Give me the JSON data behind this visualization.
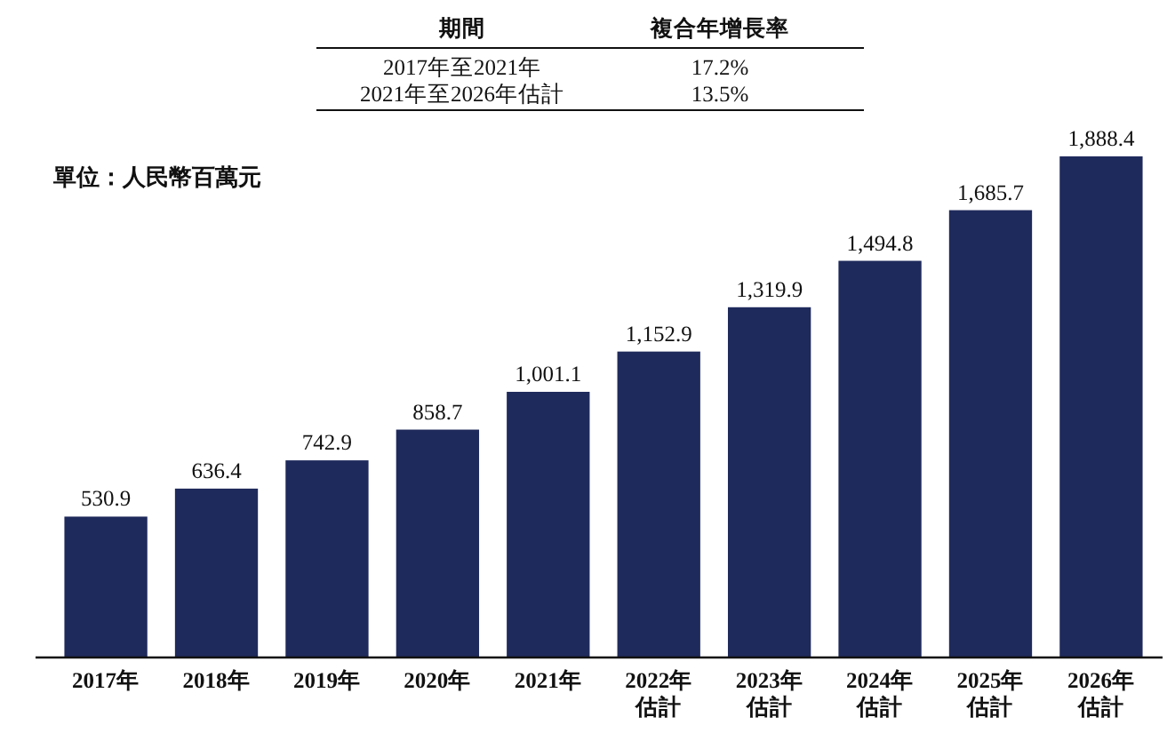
{
  "chart_data": {
    "type": "bar",
    "ylabel": "單位：人民幣百萬元",
    "categories": [
      "2017年",
      "2018年",
      "2019年",
      "2020年",
      "2021年",
      "2022年估計",
      "2023年估計",
      "2024年估計",
      "2025年估計",
      "2026年估計"
    ],
    "values": [
      530.9,
      636.4,
      742.9,
      858.7,
      1001.1,
      1152.9,
      1319.9,
      1494.8,
      1685.7,
      1888.4
    ],
    "color": "#1f2a5c",
    "value_labels": [
      "530.9",
      "636.4",
      "742.9",
      "858.7",
      "1,001.1",
      "1,152.9",
      "1,319.9",
      "1,494.8",
      "1,685.7",
      "1,888.4"
    ],
    "annotations": [
      "期間",
      "複合年增長率",
      "2017年至2021年",
      "17.2%",
      "2021年至2026年估計",
      "13.5%"
    ]
  }
}
